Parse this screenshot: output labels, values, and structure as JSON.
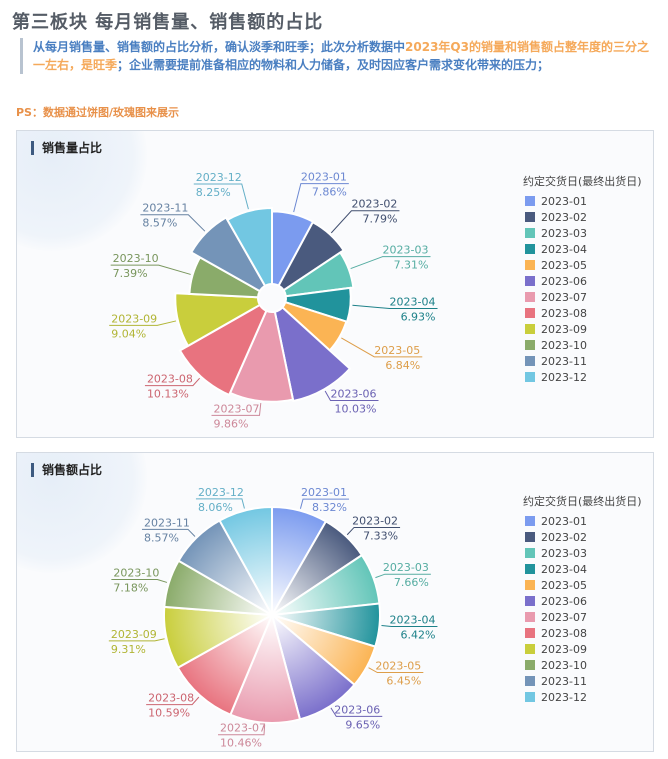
{
  "header": {
    "title": "第三板块   每月销售量、销售额的占比",
    "desc_a": "从每月销售量、销售额的占比分析，确认淡季和旺季；此次分析数据中",
    "desc_hl": "2023年Q3的销量和销售额占整年度的三分之一左右，是旺季",
    "desc_b": "；企业需要提前准备相应的物料和人力储备，及时因应客户需求变化带来的压力；",
    "ps": "PS：数据通过饼图/玫瑰图来展示"
  },
  "colors": [
    "#7b9bef",
    "#4a5a7e",
    "#62c5b8",
    "#21939c",
    "#fbb454",
    "#7a6fcb",
    "#e99aae",
    "#e8737f",
    "#c9ce3c",
    "#8aab6a",
    "#7494b8",
    "#72c7e2"
  ],
  "legend_title": "约定交货日(最终出货日)",
  "chart_data": [
    {
      "type": "rose",
      "title": "销售量占比",
      "categories": [
        "2023-01",
        "2023-02",
        "2023-03",
        "2023-04",
        "2023-05",
        "2023-06",
        "2023-07",
        "2023-08",
        "2023-09",
        "2023-10",
        "2023-11",
        "2023-12"
      ],
      "values": [
        7.86,
        7.79,
        7.31,
        6.93,
        6.84,
        10.03,
        9.86,
        10.13,
        9.04,
        7.39,
        8.57,
        8.25
      ],
      "labels": [
        "7.86%",
        "7.79%",
        "7.31%",
        "6.93%",
        "6.84%",
        "10.03%",
        "9.86%",
        "10.13%",
        "9.04%",
        "7.39%",
        "8.57%",
        "8.25%"
      ],
      "legend_title": "约定交货日(最终出货日)"
    },
    {
      "type": "pie",
      "title": "销售额占比",
      "categories": [
        "2023-01",
        "2023-02",
        "2023-03",
        "2023-04",
        "2023-05",
        "2023-06",
        "2023-07",
        "2023-08",
        "2023-09",
        "2023-10",
        "2023-11",
        "2023-12"
      ],
      "values": [
        8.32,
        7.33,
        7.66,
        6.42,
        6.45,
        9.65,
        10.46,
        10.59,
        9.31,
        7.18,
        8.57,
        8.06
      ],
      "labels": [
        "8.32%",
        "7.33%",
        "7.66%",
        "6.42%",
        "6.45%",
        "9.65%",
        "10.46%",
        "10.59%",
        "9.31%",
        "7.18%",
        "8.57%",
        "8.06%"
      ],
      "legend_title": "约定交货日(最终出货日)"
    }
  ]
}
